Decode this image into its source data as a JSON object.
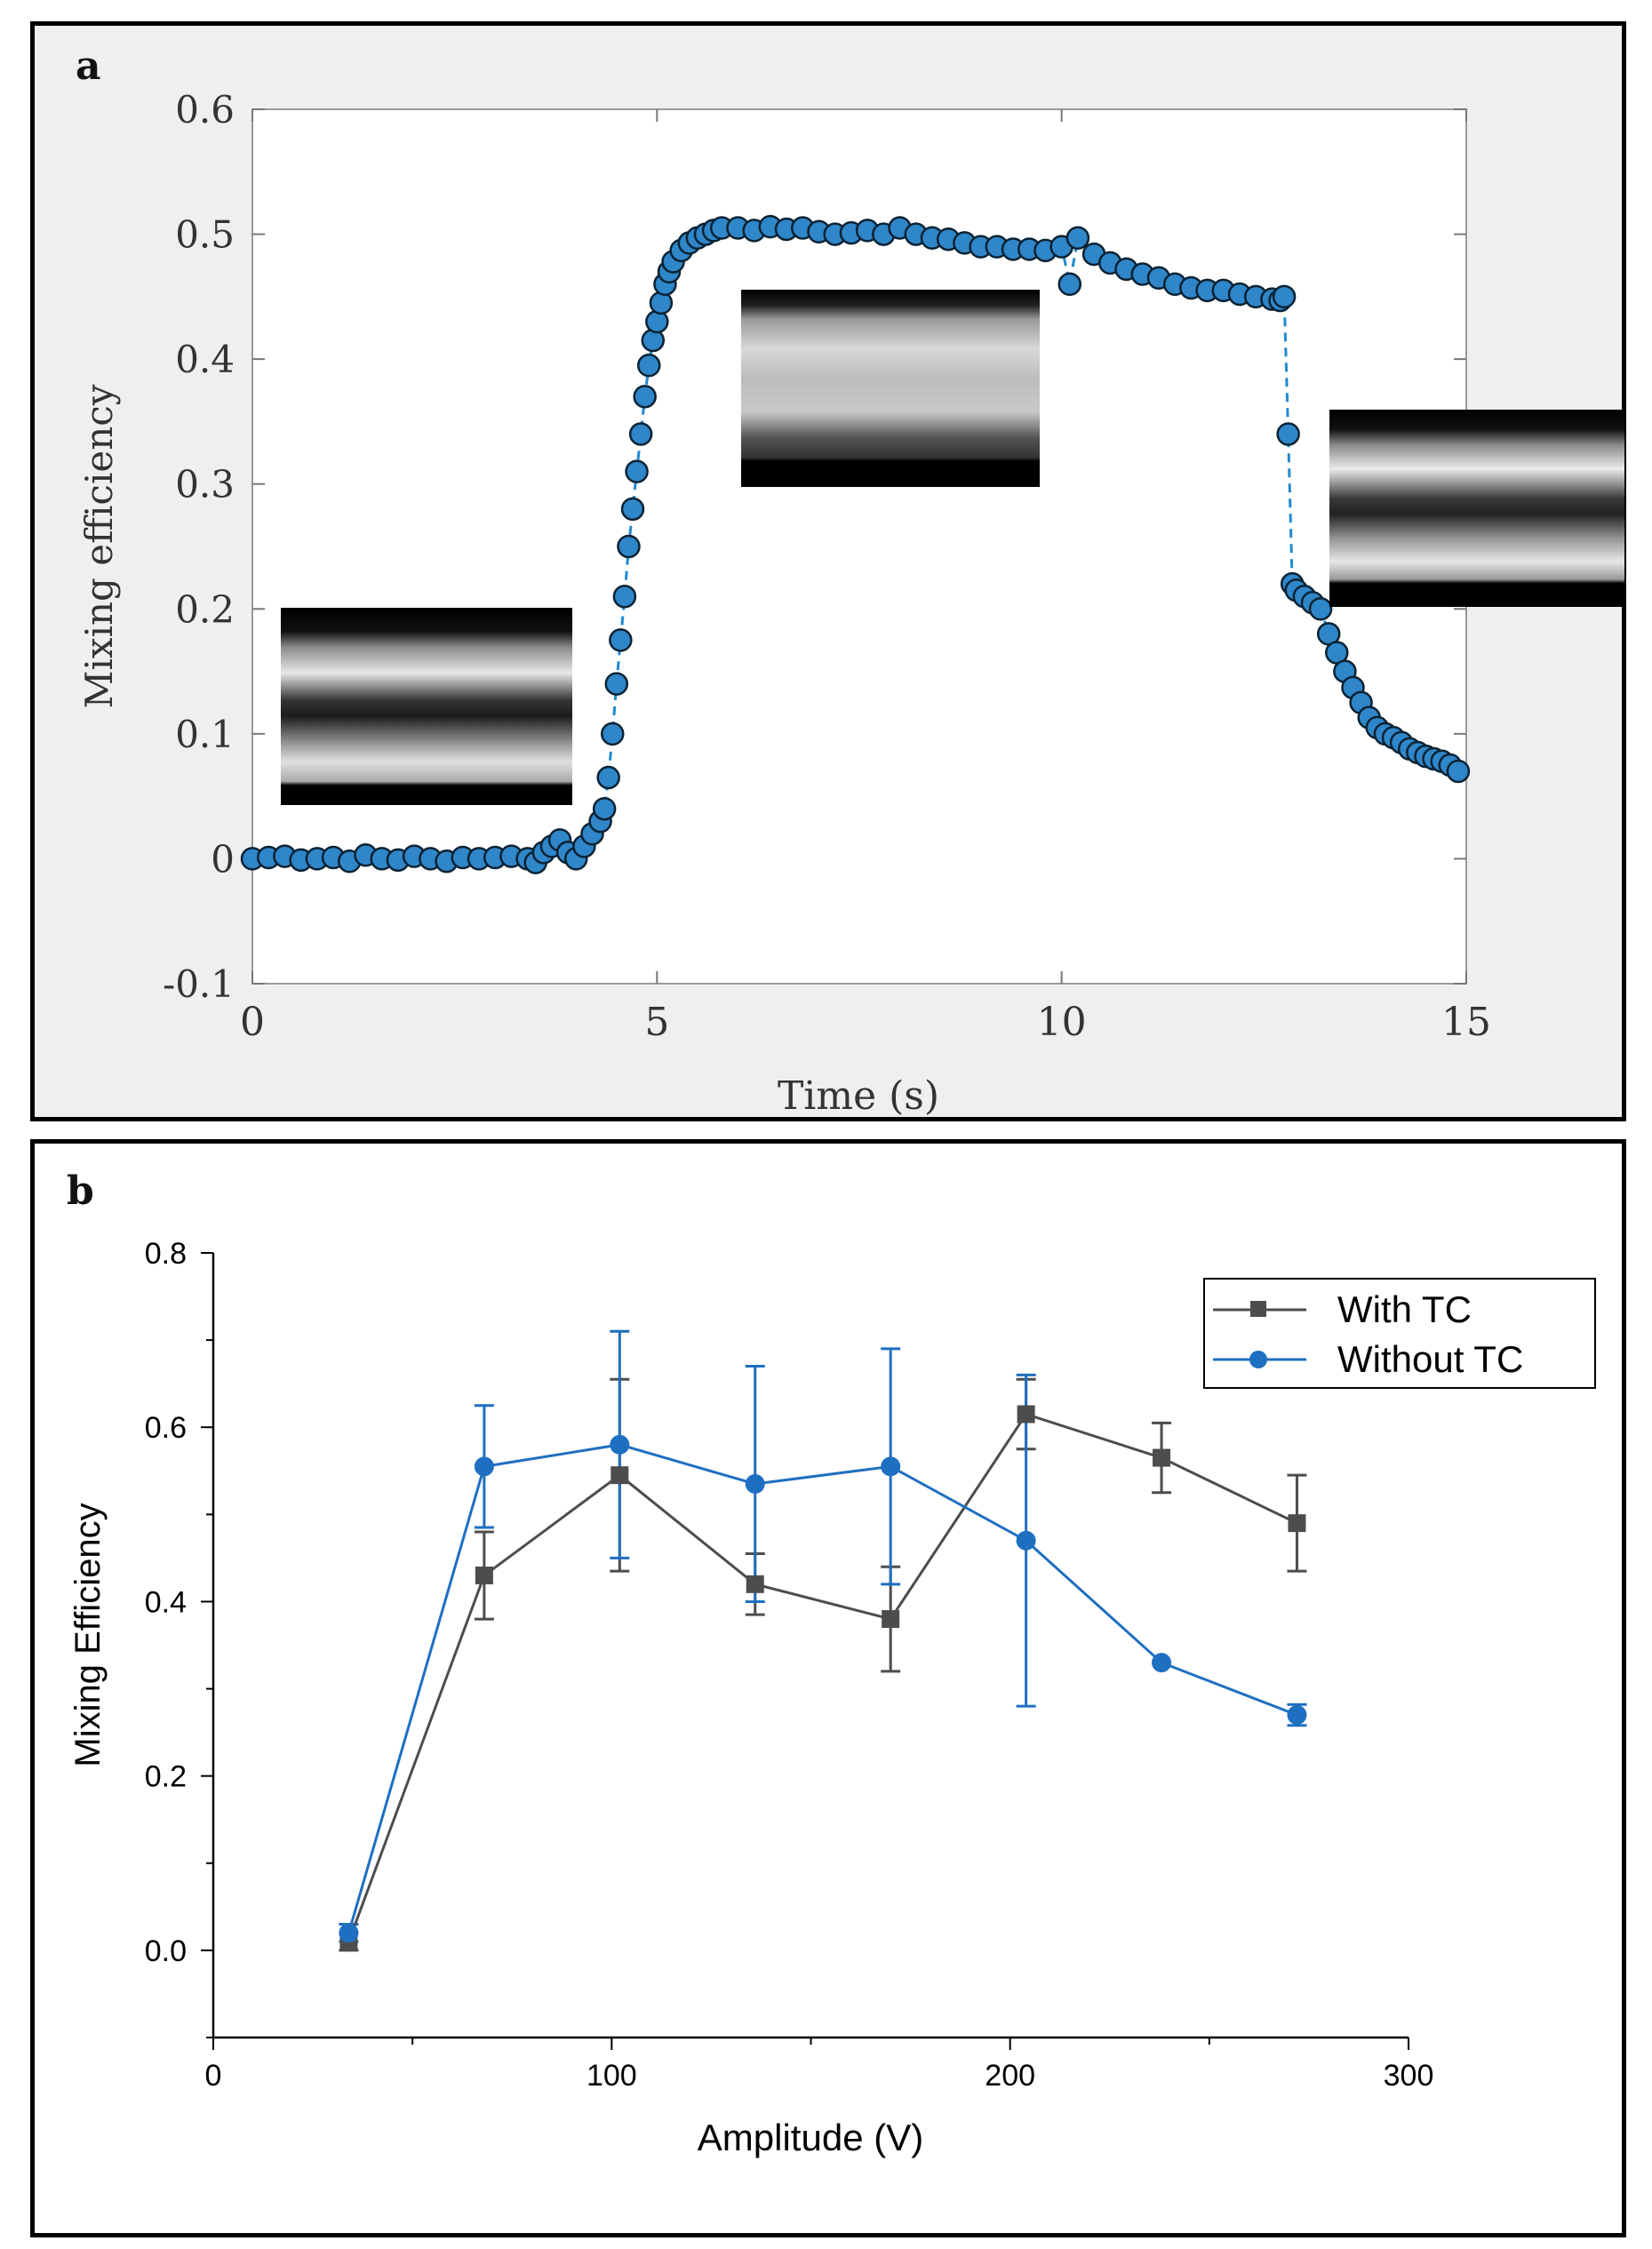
{
  "chart_data": [
    {
      "panel": "a",
      "type": "scatter",
      "title": "",
      "xlabel": "Time (s)",
      "ylabel": "Mixing efficiency",
      "xlim": [
        0,
        15
      ],
      "ylim": [
        -0.1,
        0.6
      ],
      "xticks": [
        "0",
        "5",
        "10",
        "15"
      ],
      "yticks": [
        "-0.1",
        "0",
        "0.1",
        "0.2",
        "0.3",
        "0.4",
        "0.5",
        "0.6"
      ],
      "marker_color": "#2f86c8",
      "line_style": "dashed",
      "series": [
        {
          "name": "Mixing efficiency",
          "x": [
            0,
            0.2,
            0.4,
            0.6,
            0.8,
            1.0,
            1.2,
            1.4,
            1.6,
            1.8,
            2.0,
            2.2,
            2.4,
            2.6,
            2.8,
            3.0,
            3.2,
            3.4,
            3.5,
            3.6,
            3.7,
            3.8,
            3.9,
            4.0,
            4.1,
            4.2,
            4.3,
            4.35,
            4.4,
            4.45,
            4.5,
            4.55,
            4.6,
            4.65,
            4.7,
            4.75,
            4.8,
            4.85,
            4.9,
            4.95,
            5.0,
            5.05,
            5.1,
            5.15,
            5.2,
            5.3,
            5.4,
            5.5,
            5.6,
            5.7,
            5.8,
            6.0,
            6.2,
            6.4,
            6.6,
            6.8,
            7.0,
            7.2,
            7.4,
            7.6,
            7.8,
            8.0,
            8.2,
            8.4,
            8.6,
            8.8,
            9.0,
            9.2,
            9.4,
            9.6,
            9.8,
            10.0,
            10.1,
            10.2,
            10.4,
            10.6,
            10.8,
            11.0,
            11.2,
            11.4,
            11.6,
            11.8,
            12.0,
            12.2,
            12.4,
            12.6,
            12.7,
            12.75,
            12.8,
            12.85,
            12.9,
            13.0,
            13.1,
            13.2,
            13.3,
            13.4,
            13.5,
            13.6,
            13.7,
            13.8,
            13.9,
            14.0,
            14.1,
            14.2,
            14.3,
            14.4,
            14.5,
            14.6,
            14.7,
            14.8,
            14.9
          ],
          "y": [
            0,
            0.001,
            0.002,
            -0.001,
            0.0,
            0.001,
            -0.002,
            0.003,
            0.0,
            -0.001,
            0.002,
            0.0,
            -0.002,
            0.001,
            0.0,
            0.001,
            0.002,
            0.0,
            -0.003,
            0.005,
            0.01,
            0.015,
            0.005,
            0.0,
            0.01,
            0.02,
            0.03,
            0.04,
            0.065,
            0.1,
            0.14,
            0.175,
            0.21,
            0.25,
            0.28,
            0.31,
            0.34,
            0.37,
            0.395,
            0.415,
            0.43,
            0.445,
            0.46,
            0.47,
            0.478,
            0.487,
            0.493,
            0.497,
            0.5,
            0.503,
            0.505,
            0.505,
            0.503,
            0.506,
            0.504,
            0.505,
            0.502,
            0.5,
            0.501,
            0.503,
            0.5,
            0.505,
            0.5,
            0.497,
            0.496,
            0.493,
            0.49,
            0.49,
            0.488,
            0.488,
            0.487,
            0.49,
            0.46,
            0.497,
            0.484,
            0.477,
            0.472,
            0.468,
            0.465,
            0.46,
            0.457,
            0.455,
            0.455,
            0.452,
            0.45,
            0.448,
            0.447,
            0.45,
            0.34,
            0.22,
            0.215,
            0.21,
            0.205,
            0.2,
            0.18,
            0.165,
            0.15,
            0.137,
            0.125,
            0.113,
            0.105,
            0.1,
            0.097,
            0.093,
            0.088,
            0.085,
            0.082,
            0.08,
            0.078,
            0.075,
            0.07
          ]
        }
      ]
    },
    {
      "panel": "b",
      "type": "line",
      "title": "",
      "xlabel": "Amplitude (V)",
      "ylabel": "Mixing Efficiency",
      "xlim": [
        0,
        300
      ],
      "ylim": [
        -0.1,
        0.8
      ],
      "xticks": [
        "0",
        "100",
        "200",
        "300"
      ],
      "yticks": [
        "0.0",
        "0.2",
        "0.4",
        "0.6",
        "0.8"
      ],
      "legend_position": "top-right",
      "series": [
        {
          "name": "With TC",
          "color": "#4d4d4d",
          "marker": "square",
          "x": [
            34,
            68,
            102,
            136,
            170,
            204,
            238,
            272
          ],
          "y": [
            0.01,
            0.43,
            0.545,
            0.42,
            0.38,
            0.615,
            0.565,
            0.49
          ],
          "err": [
            0.01,
            0.05,
            0.11,
            0.035,
            0.06,
            0.04,
            0.04,
            0.055
          ]
        },
        {
          "name": "Without TC",
          "color": "#1f6fc1",
          "marker": "circle",
          "x": [
            34,
            68,
            102,
            136,
            170,
            204,
            238,
            272
          ],
          "y": [
            0.02,
            0.555,
            0.58,
            0.535,
            0.555,
            0.47,
            0.33,
            0.27
          ],
          "err": [
            0.01,
            0.07,
            0.13,
            0.135,
            0.135,
            0.19,
            0.0,
            0.012
          ]
        }
      ]
    }
  ],
  "panels": {
    "a_label": "a",
    "b_label": "b"
  }
}
